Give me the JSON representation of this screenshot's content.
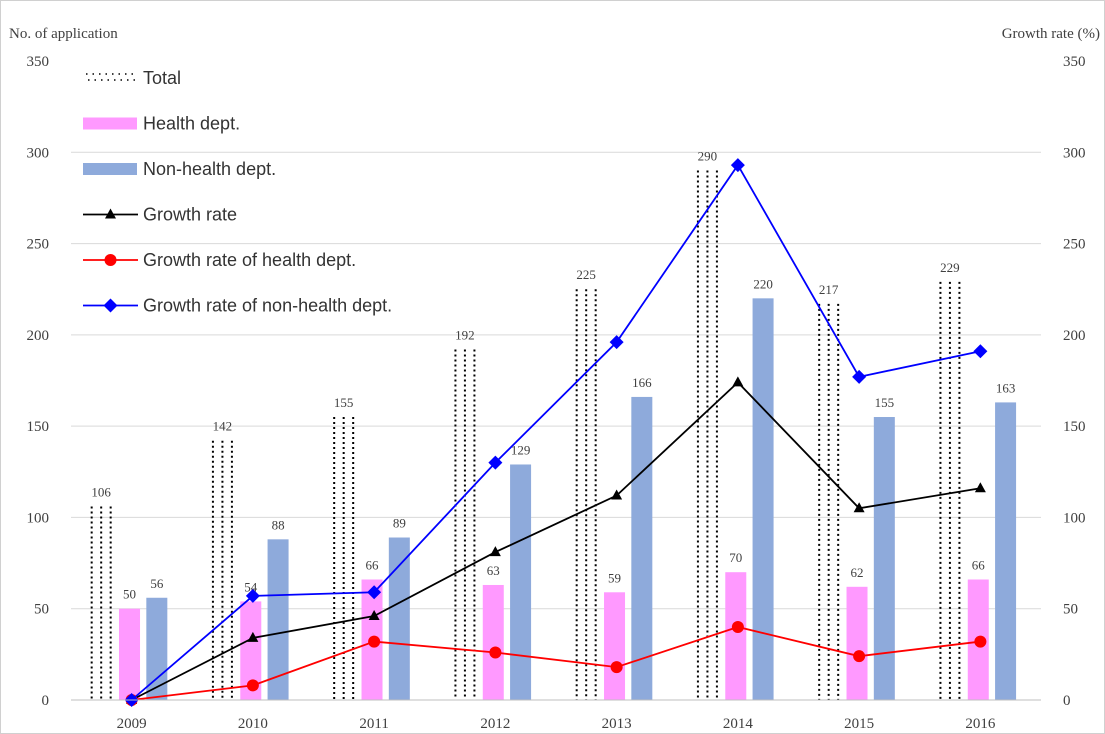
{
  "chart_data": {
    "type": "bar",
    "categories": [
      "2009",
      "2010",
      "2011",
      "2012",
      "2013",
      "2014",
      "2015",
      "2016"
    ],
    "y_left_label": "No. of application",
    "y_right_label": "Growth rate (%)",
    "ylim": [
      0,
      350
    ],
    "y2lim": [
      0,
      350
    ],
    "yticks": [
      0,
      50,
      100,
      150,
      200,
      250,
      300,
      350
    ],
    "grid": true,
    "legend_position": "top-left",
    "bar_series": [
      {
        "name": "Total",
        "values": [
          106,
          142,
          155,
          192,
          225,
          290,
          217,
          229
        ],
        "color": "#000000",
        "pattern": "dotted"
      },
      {
        "name": "Health dept.",
        "values": [
          50,
          54,
          66,
          63,
          59,
          70,
          62,
          66
        ],
        "color": "#ff99ff"
      },
      {
        "name": "Non-health dept.",
        "values": [
          56,
          88,
          89,
          129,
          166,
          220,
          155,
          163
        ],
        "color": "#8eaadb"
      }
    ],
    "line_series": [
      {
        "name": "Growth rate",
        "values": [
          0,
          34,
          46,
          81,
          112,
          174,
          105,
          116
        ],
        "color": "#000000",
        "marker": "triangle"
      },
      {
        "name": "Growth rate of health dept.",
        "values": [
          0,
          8,
          32,
          26,
          18,
          40,
          24,
          32
        ],
        "color": "#ff0000",
        "marker": "circle"
      },
      {
        "name": "Growth rate of non-health dept.",
        "values": [
          0,
          57,
          59,
          130,
          196,
          293,
          177,
          191
        ],
        "color": "#0000ff",
        "marker": "diamond"
      }
    ]
  }
}
